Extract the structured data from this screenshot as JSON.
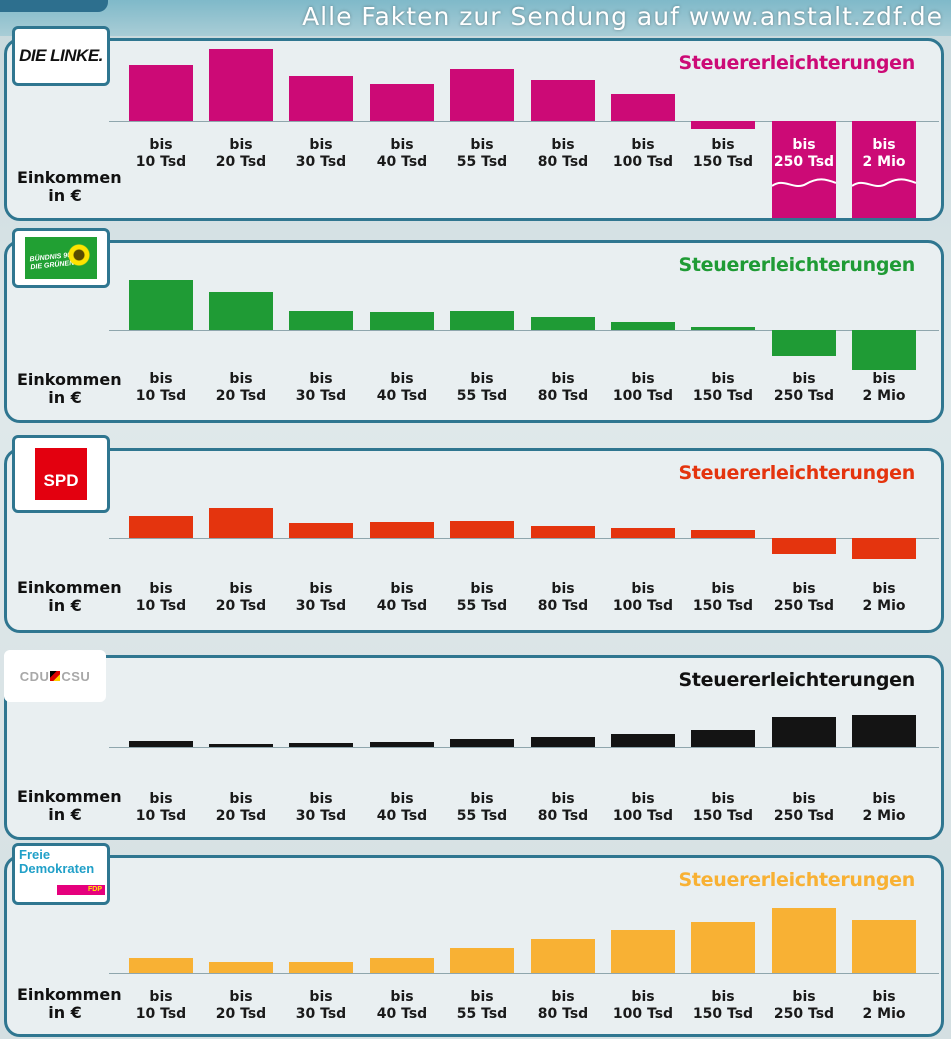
{
  "site_banner": "Alle Fakten zur Sendung auf www.anstalt.zdf.de",
  "colors": {
    "linke": "#cc0a76",
    "gruene": "#1f9b35",
    "spd": "#e4340e",
    "cdu": "#141414",
    "fdp": "#f8b134",
    "frame": "#2f7690"
  },
  "chart_data": [
    {
      "type": "bar",
      "party": "DIE LINKE.",
      "title": "Steuererleichterungen",
      "ylabel": "Einkommen in €",
      "categories": [
        "bis 10 Tsd",
        "bis 20 Tsd",
        "bis 30 Tsd",
        "bis 40 Tsd",
        "bis 55 Tsd",
        "bis 80 Tsd",
        "bis 100 Tsd",
        "bis 150 Tsd",
        "bis 250 Tsd",
        "bis 2 Mio"
      ],
      "values": [
        56,
        72,
        45,
        37,
        52,
        41,
        27,
        -8,
        -130,
        -130
      ],
      "truncated": [
        false,
        false,
        false,
        false,
        false,
        false,
        false,
        false,
        true,
        true
      ]
    },
    {
      "type": "bar",
      "party": "BÜNDNIS 90 DIE GRÜNEN",
      "title": "Steuererleichterungen",
      "ylabel": "Einkommen in €",
      "categories": [
        "bis 10 Tsd",
        "bis 20 Tsd",
        "bis 30 Tsd",
        "bis 40 Tsd",
        "bis 55 Tsd",
        "bis 80 Tsd",
        "bis 100 Tsd",
        "bis 150 Tsd",
        "bis 250 Tsd",
        "bis 2 Mio"
      ],
      "values": [
        50,
        38,
        19,
        18,
        19,
        13,
        8,
        3,
        -26,
        -40
      ],
      "truncated": [
        false,
        false,
        false,
        false,
        false,
        false,
        false,
        false,
        false,
        false
      ]
    },
    {
      "type": "bar",
      "party": "SPD",
      "title": "Steuererleichterungen",
      "ylabel": "Einkommen in €",
      "categories": [
        "bis 10 Tsd",
        "bis 20 Tsd",
        "bis 30 Tsd",
        "bis 40 Tsd",
        "bis 55 Tsd",
        "bis 80 Tsd",
        "bis 100 Tsd",
        "bis 150 Tsd",
        "bis 250 Tsd",
        "bis 2 Mio"
      ],
      "values": [
        22,
        30,
        15,
        16,
        17,
        12,
        10,
        8,
        -16,
        -21
      ],
      "truncated": [
        false,
        false,
        false,
        false,
        false,
        false,
        false,
        false,
        false,
        false
      ]
    },
    {
      "type": "bar",
      "party": "CDU CSU",
      "title": "Steuererleichterungen",
      "ylabel": "Einkommen in €",
      "categories": [
        "bis 10 Tsd",
        "bis 20 Tsd",
        "bis 30 Tsd",
        "bis 40 Tsd",
        "bis 55 Tsd",
        "bis 80 Tsd",
        "bis 100 Tsd",
        "bis 150 Tsd",
        "bis 250 Tsd",
        "bis 2 Mio"
      ],
      "values": [
        6,
        3,
        4,
        5,
        8,
        10,
        13,
        17,
        30,
        32
      ],
      "truncated": [
        false,
        false,
        false,
        false,
        false,
        false,
        false,
        false,
        false,
        false
      ]
    },
    {
      "type": "bar",
      "party": "Freie Demokraten FDP",
      "title": "Steuererleichterungen",
      "ylabel": "Einkommen in €",
      "categories": [
        "bis 10 Tsd",
        "bis 20 Tsd",
        "bis 30 Tsd",
        "bis 40 Tsd",
        "bis 55 Tsd",
        "bis 80 Tsd",
        "bis 100 Tsd",
        "bis 150 Tsd",
        "bis 250 Tsd",
        "bis 2 Mio"
      ],
      "values": [
        15,
        11,
        11,
        15,
        25,
        34,
        43,
        51,
        65,
        53
      ],
      "truncated": [
        false,
        false,
        false,
        false,
        false,
        false,
        false,
        false,
        false,
        false
      ]
    }
  ],
  "logos": {
    "linke": "DIE LINKE.",
    "gruene_line1": "BÜNDNIS 90",
    "gruene_line2": "DIE GRÜNEN",
    "spd": "SPD",
    "cdu_left": "CDU",
    "cdu_right": "CSU",
    "fdp_line1": "Freie",
    "fdp_line2": "Demokraten",
    "fdp_tag": "FDP"
  }
}
